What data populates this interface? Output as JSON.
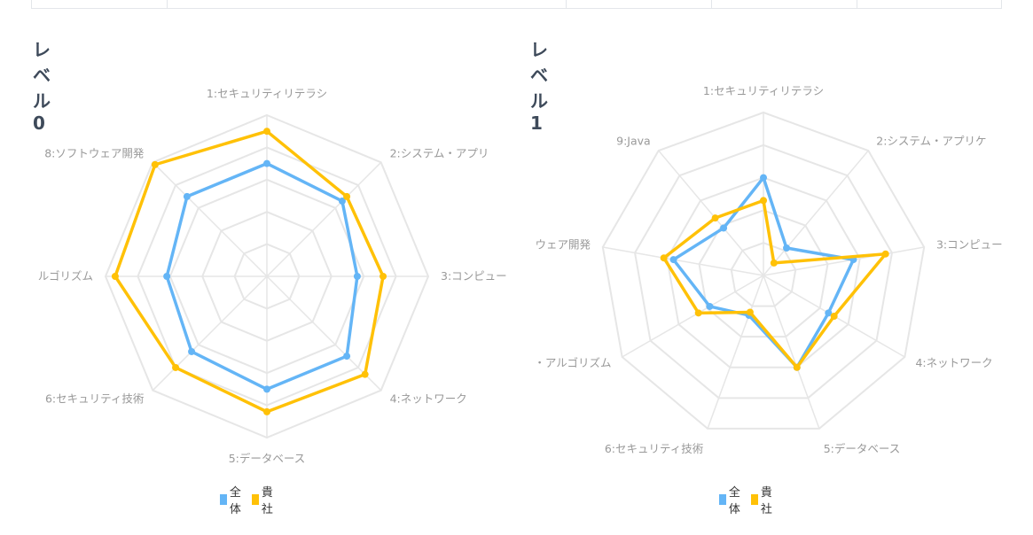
{
  "colors": {
    "overall": "#64b5f6",
    "company": "#ffc107",
    "grid": "#e6e6e6",
    "label": "#999999"
  },
  "legend": {
    "overall": "全体",
    "company": "貴社"
  },
  "chart_data": [
    {
      "type": "radar",
      "title": "レベル0",
      "categories": [
        "1:セキュリティリテラシ",
        "2:システム・アプリ",
        "3:コンピュー",
        "4:ネットワーク",
        "5:データベース",
        "6:セキュリティ技術",
        "ルゴリズム",
        "8:ソフトウェア開発"
      ],
      "rlim": [
        0,
        5
      ],
      "grid_levels": 5,
      "series": [
        {
          "name": "全体",
          "values": [
            3.5,
            3.3,
            2.8,
            3.5,
            3.5,
            3.3,
            3.1,
            3.5
          ]
        },
        {
          "name": "貴社",
          "values": [
            4.5,
            3.5,
            3.6,
            4.3,
            4.2,
            4.0,
            4.7,
            4.9
          ]
        }
      ]
    },
    {
      "type": "radar",
      "title": "レベル1",
      "categories": [
        "1:セキュリティリテラシ",
        "2:システム・アプリケ",
        "3:コンピュー",
        "4:ネットワーク",
        "5:データベース",
        "6:セキュリティ技術",
        "・アルゴリズム",
        "ウェア開発",
        "9:Java"
      ],
      "rlim": [
        0,
        5
      ],
      "grid_levels": 5,
      "series": [
        {
          "name": "全体",
          "values": [
            3.0,
            1.1,
            2.8,
            2.3,
            3.0,
            1.3,
            1.9,
            2.8,
            1.9
          ]
        },
        {
          "name": "貴社",
          "values": [
            2.3,
            0.5,
            3.8,
            2.5,
            3.0,
            1.2,
            2.3,
            3.1,
            2.3
          ]
        }
      ]
    }
  ]
}
